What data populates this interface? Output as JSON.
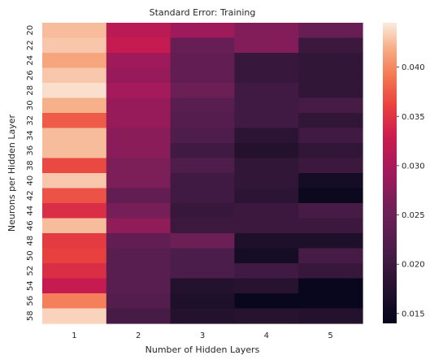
{
  "chart_data": {
    "type": "heatmap",
    "title": "Standard Error: Training",
    "xlabel": "Number of Hidden Layers",
    "ylabel": "Neurons per Hidden Layer",
    "x_categories": [
      "1",
      "2",
      "3",
      "4",
      "5"
    ],
    "y_categories": [
      "20",
      "22",
      "24",
      "26",
      "28",
      "30",
      "32",
      "34",
      "36",
      "38",
      "40",
      "42",
      "44",
      "46",
      "48",
      "50",
      "52",
      "54",
      "56",
      "58"
    ],
    "colorbar_range": [
      0.014,
      0.0445
    ],
    "colorbar_ticks": [
      0.015,
      0.02,
      0.025,
      0.03,
      0.035,
      0.04
    ],
    "colorbar_tick_labels": [
      "0.015",
      "0.020",
      "0.025",
      "0.030",
      "0.035",
      "0.040"
    ],
    "colormap": "rocket",
    "grid": false,
    "legend": "colorbar-right",
    "values": [
      [
        0.0425,
        0.0315,
        0.029,
        0.027,
        0.0245
      ],
      [
        0.043,
        0.0325,
        0.0245,
        0.027,
        0.02
      ],
      [
        0.0415,
        0.029,
        0.024,
        0.0195,
        0.019
      ],
      [
        0.043,
        0.0285,
        0.024,
        0.0195,
        0.019
      ],
      [
        0.044,
        0.0295,
        0.025,
        0.0205,
        0.019
      ],
      [
        0.042,
        0.0285,
        0.023,
        0.0205,
        0.021
      ],
      [
        0.0375,
        0.0285,
        0.0225,
        0.0205,
        0.019
      ],
      [
        0.0425,
        0.0275,
        0.022,
        0.0185,
        0.0205
      ],
      [
        0.0425,
        0.0275,
        0.0205,
        0.0175,
        0.019
      ],
      [
        0.0365,
        0.0265,
        0.022,
        0.019,
        0.02
      ],
      [
        0.043,
        0.0265,
        0.0205,
        0.019,
        0.016
      ],
      [
        0.037,
        0.024,
        0.0205,
        0.0185,
        0.015
      ],
      [
        0.0345,
        0.026,
        0.0195,
        0.02,
        0.021
      ],
      [
        0.0425,
        0.028,
        0.02,
        0.02,
        0.02
      ],
      [
        0.0355,
        0.024,
        0.025,
        0.017,
        0.017
      ],
      [
        0.036,
        0.023,
        0.0215,
        0.016,
        0.021
      ],
      [
        0.0345,
        0.023,
        0.0215,
        0.0205,
        0.0195
      ],
      [
        0.0325,
        0.023,
        0.0175,
        0.018,
        0.0145
      ],
      [
        0.0395,
        0.0225,
        0.017,
        0.0145,
        0.0145
      ],
      [
        0.0435,
        0.021,
        0.0175,
        0.018,
        0.0175
      ]
    ]
  }
}
